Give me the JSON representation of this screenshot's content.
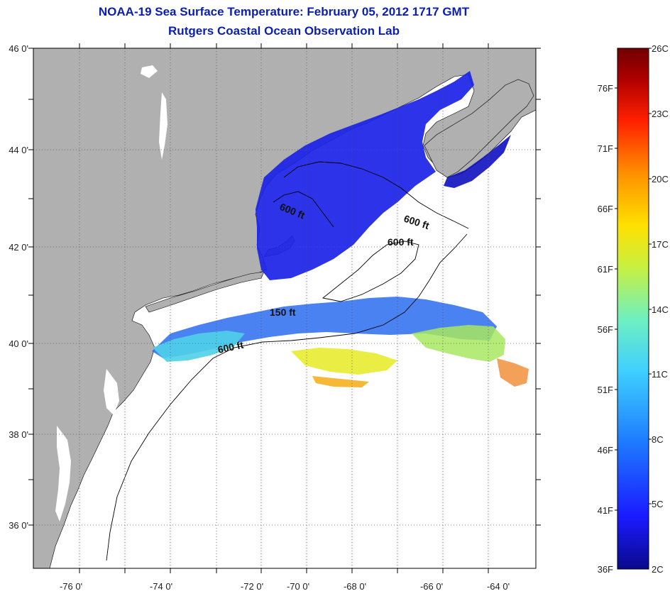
{
  "title": "NOAA-19 Sea Surface Temperature:  February 05, 2012 1717 GMT",
  "subtitle": "Rutgers Coastal Ocean Observation Lab",
  "axes": {
    "lat_ticks": [
      "46 0'",
      "44 0'",
      "42 0'",
      "40 0'",
      "38 0'",
      "36 0'"
    ],
    "lon_ticks": [
      "-76 0'",
      "-74 0'",
      "-72 0'",
      "-70 0'",
      "-68 0'",
      "-66 0'",
      "-64 0'"
    ],
    "lat_range": [
      35,
      46
    ],
    "lon_range": [
      -77,
      -63
    ]
  },
  "contour_labels": [
    "600 ft",
    "600 ft",
    "600 ft",
    "150 ft",
    "600 ft"
  ],
  "colorbar": {
    "left_labels": [
      "76F",
      "71F",
      "66F",
      "61F",
      "56F",
      "51F",
      "46F",
      "41F",
      "36F"
    ],
    "right_labels": [
      "26C",
      "23C",
      "20C",
      "17C",
      "14C",
      "11C",
      "8C",
      "5C",
      "2C"
    ],
    "stops": [
      "#0a0a8c",
      "#1a1aff",
      "#1f7fff",
      "#3fd0ff",
      "#6ff0c0",
      "#c8f040",
      "#ffe000",
      "#ff9000",
      "#ff2000",
      "#b00000",
      "#700000"
    ]
  },
  "colors": {
    "land": "#b0b0b0",
    "ocean": "#ffffff",
    "title": "#0a1fb0",
    "coastline": "#000000"
  }
}
